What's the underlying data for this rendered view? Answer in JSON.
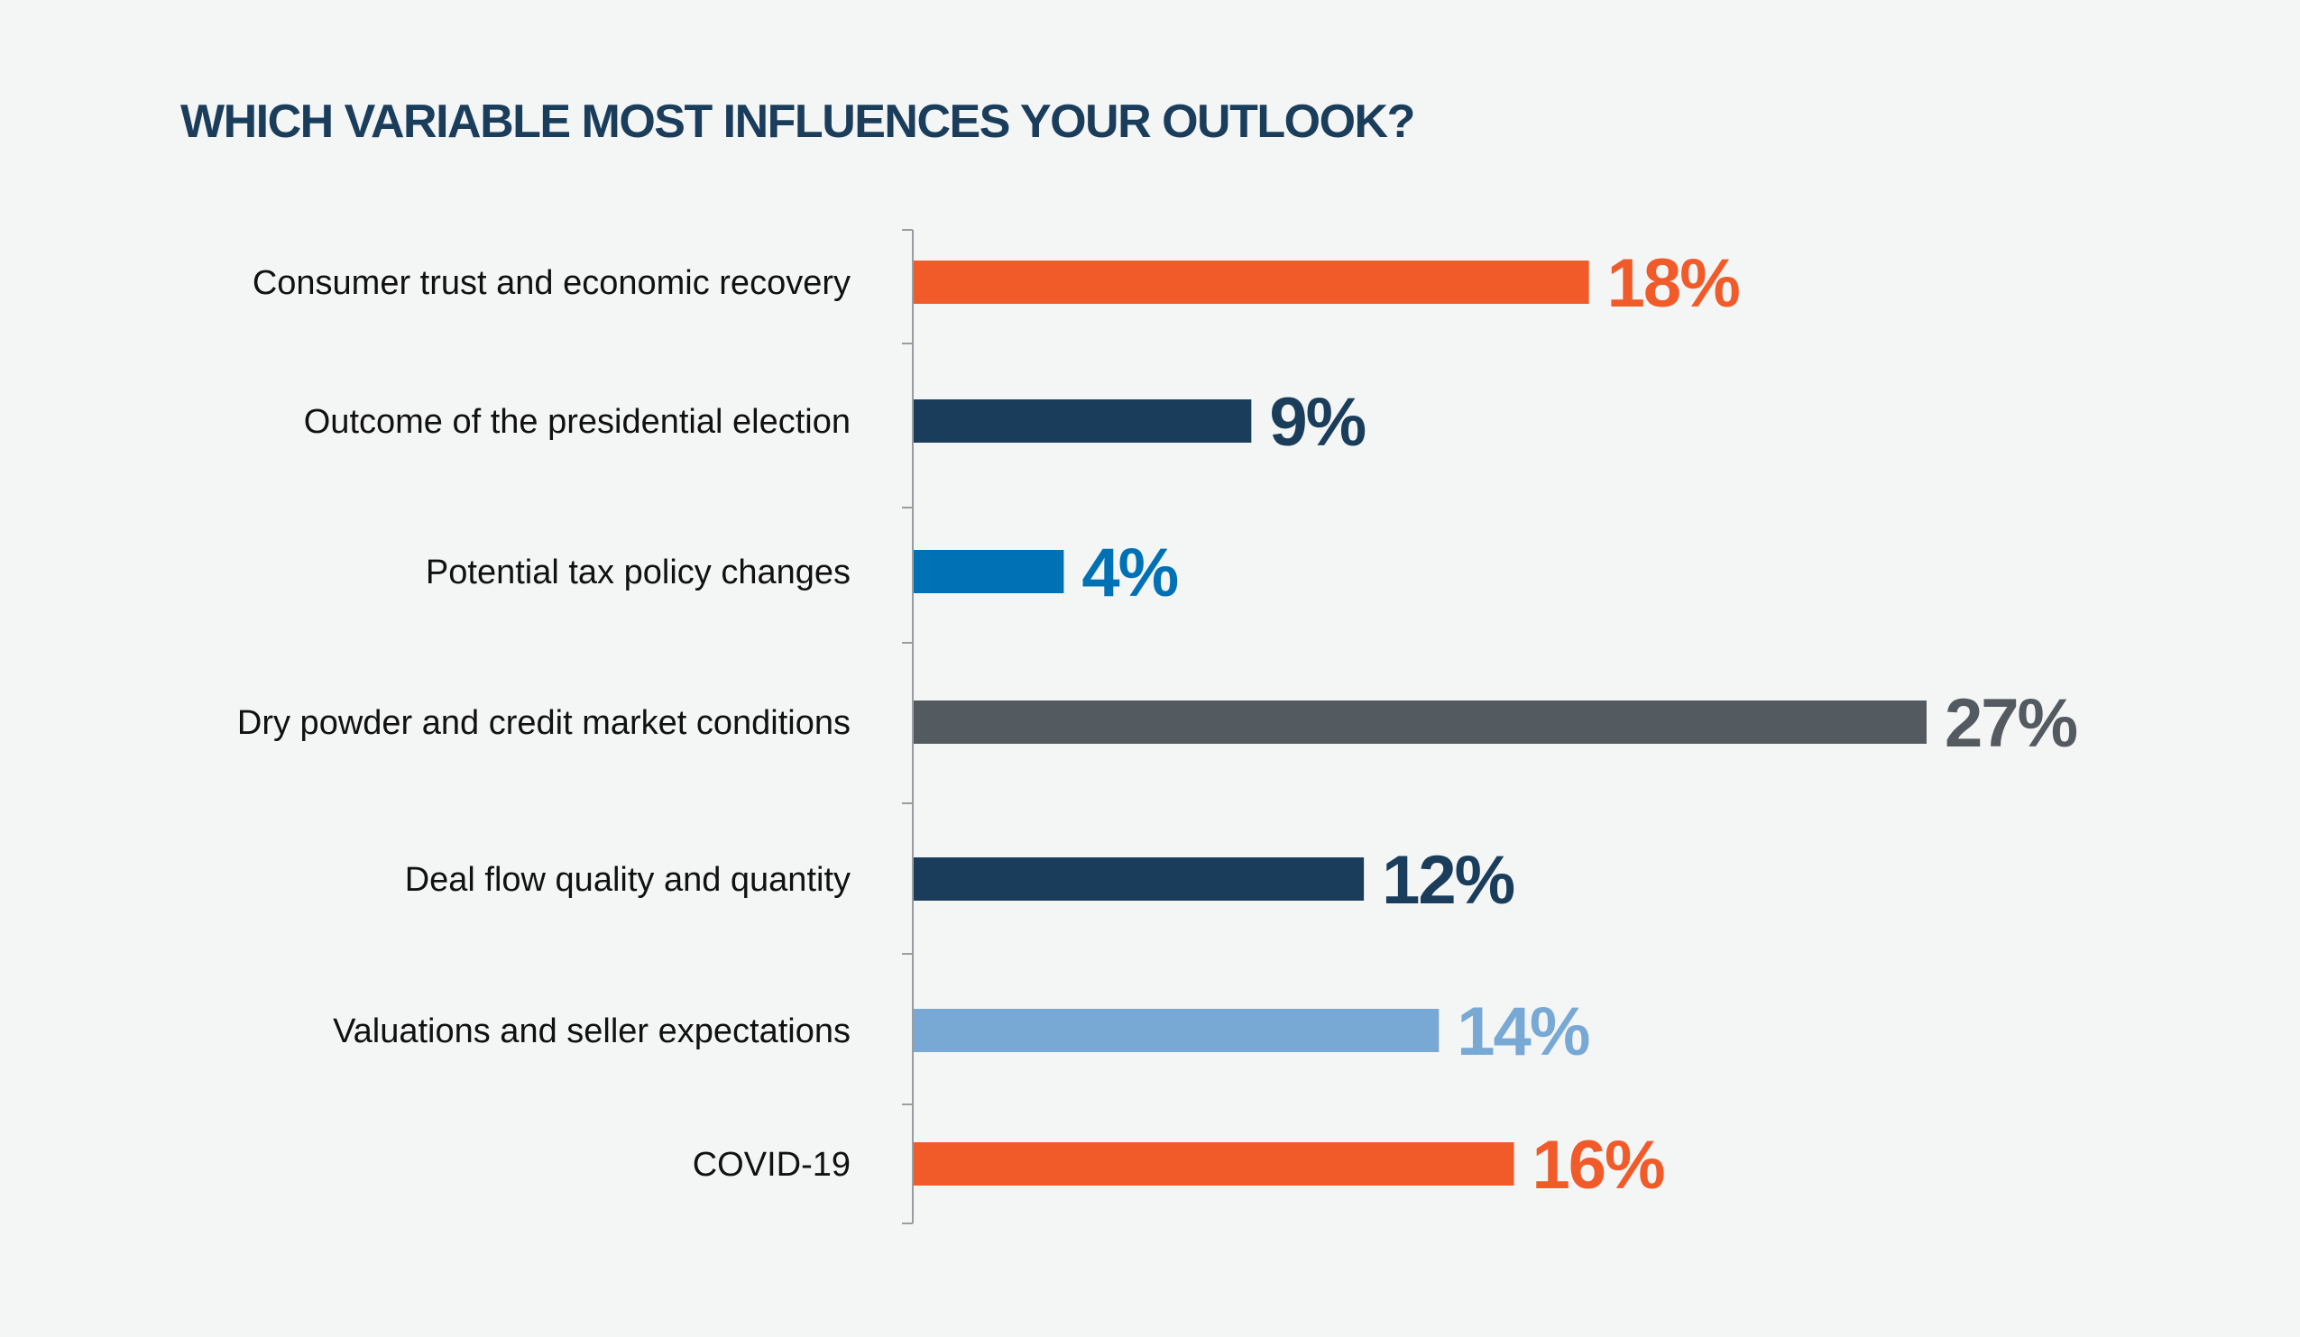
{
  "chart_data": {
    "type": "bar",
    "orientation": "horizontal",
    "title": "WHICH VARIABLE MOST INFLUENCES YOUR OUTLOOK?",
    "xlabel": "",
    "ylabel": "",
    "xlim": [
      0,
      27
    ],
    "grid": false,
    "categories": [
      "Consumer trust and economic recovery",
      "Outcome of the presidential election",
      "Potential tax policy changes",
      "Dry powder and credit market conditions",
      "Deal flow quality and quantity",
      "Valuations and seller expectations",
      "COVID-19"
    ],
    "values": [
      18,
      9,
      4,
      27,
      12,
      14,
      16
    ],
    "value_labels": [
      "18%",
      "9%",
      "4%",
      "27%",
      "12%",
      "14%",
      "16%"
    ],
    "colors": [
      "#f15a29",
      "#1b3d5c",
      "#0071b5",
      "#545b60",
      "#1b3d5c",
      "#78a8d4",
      "#f15a29"
    ]
  }
}
